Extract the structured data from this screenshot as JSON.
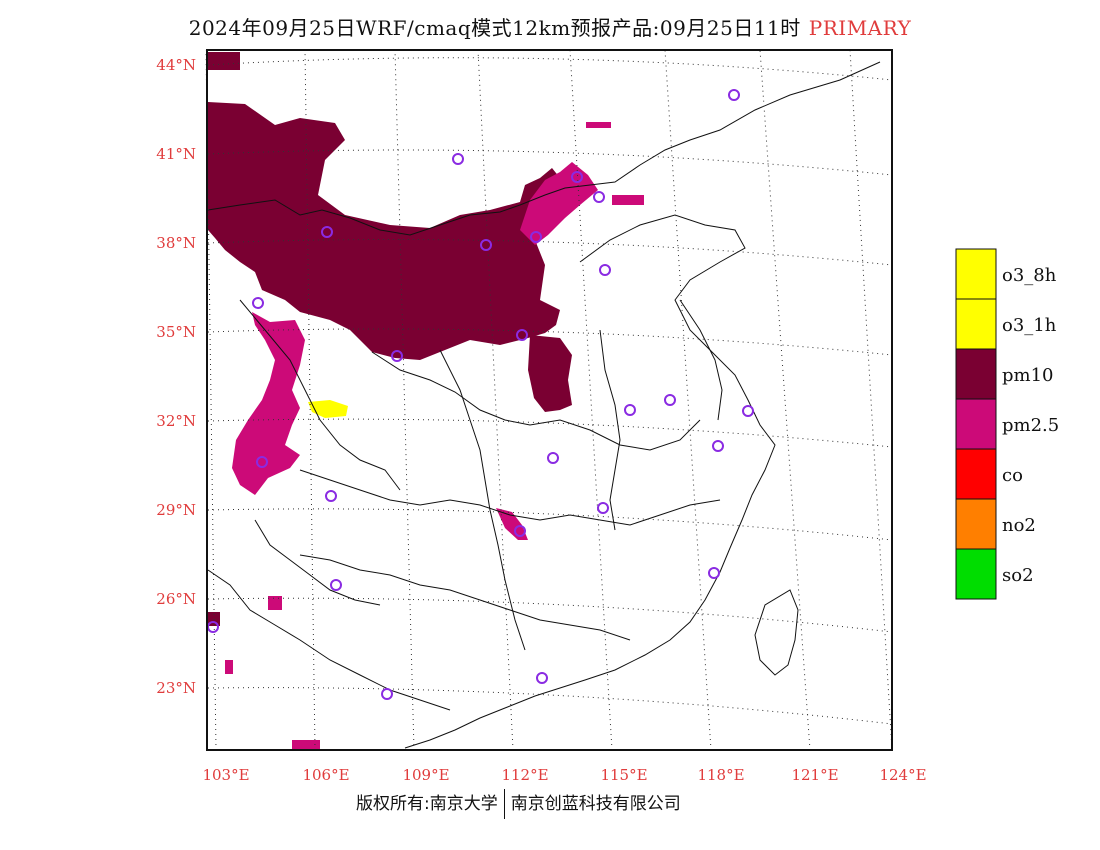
{
  "title": {
    "text": "2024年09月25日WRF/cmaq模式12km预报产品:09月25日11时",
    "tag": "PRIMARY"
  },
  "lat_labels": [
    "44°N",
    "41°N",
    "38°N",
    "35°N",
    "32°N",
    "29°N",
    "26°N",
    "23°N"
  ],
  "lon_labels": [
    "103°E",
    "106°E",
    "109°E",
    "112°E",
    "115°E",
    "118°E",
    "121°E",
    "124°E"
  ],
  "legend": [
    {
      "label": "o3_8h",
      "color": "#ffff00"
    },
    {
      "label": "o3_1h",
      "color": "#ffff00"
    },
    {
      "label": "pm10",
      "color": "#7a0032"
    },
    {
      "label": "pm2.5",
      "color": "#cc0a78"
    },
    {
      "label": "co",
      "color": "#ff0000"
    },
    {
      "label": "no2",
      "color": "#ff7f00"
    },
    {
      "label": "so2",
      "color": "#00dd00"
    }
  ],
  "footer": {
    "left": "版权所有:南京大学",
    "right": "南京创蓝科技有限公司"
  },
  "colors": {
    "pm10": "#7a0032",
    "pm25": "#cc0a78",
    "o3": "#ffff00",
    "station": "#8a2be2",
    "axis_label": "#e03c3c"
  }
}
